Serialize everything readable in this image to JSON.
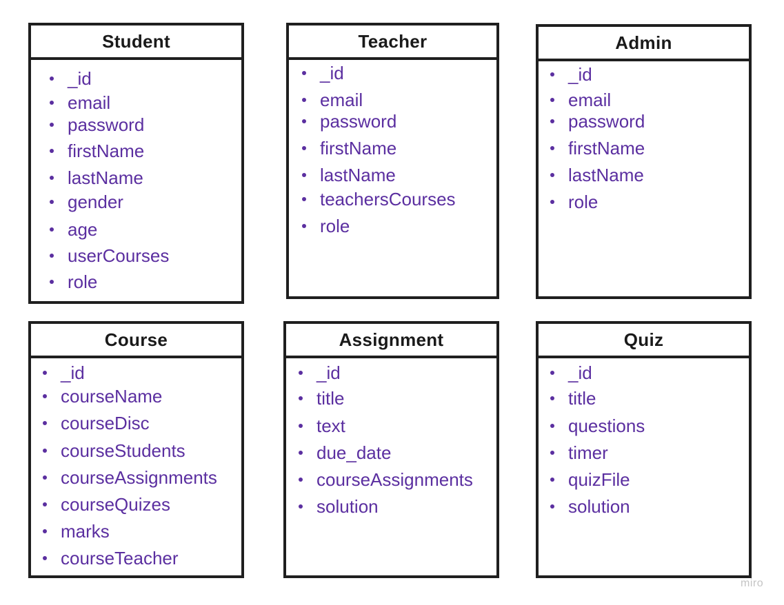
{
  "diagram": {
    "accent_color": "#5b2fa0",
    "border_color": "#1f1f1f",
    "entities": [
      {
        "name": "Student",
        "fields": [
          "_id",
          "email",
          "password",
          "firstName",
          "lastName",
          "gender",
          "age",
          "userCourses",
          "role"
        ]
      },
      {
        "name": "Teacher",
        "fields": [
          "_id",
          "email",
          "password",
          "firstName",
          "lastName",
          "teachersCourses",
          "role"
        ]
      },
      {
        "name": "Admin",
        "fields": [
          "_id",
          "email",
          "password",
          "firstName",
          "lastName",
          "role"
        ]
      },
      {
        "name": "Course",
        "fields": [
          "_id",
          "courseName",
          "courseDisc",
          "courseStudents",
          "courseAssignments",
          "courseQuizes",
          "marks",
          "courseTeacher"
        ]
      },
      {
        "name": "Assignment",
        "fields": [
          "_id",
          "title",
          "text",
          "due_date",
          "courseAssignments",
          "solution"
        ]
      },
      {
        "name": "Quiz",
        "fields": [
          "_id",
          "title",
          "questions",
          "timer",
          "quizFile",
          "solution"
        ]
      }
    ]
  },
  "watermark": "miro"
}
